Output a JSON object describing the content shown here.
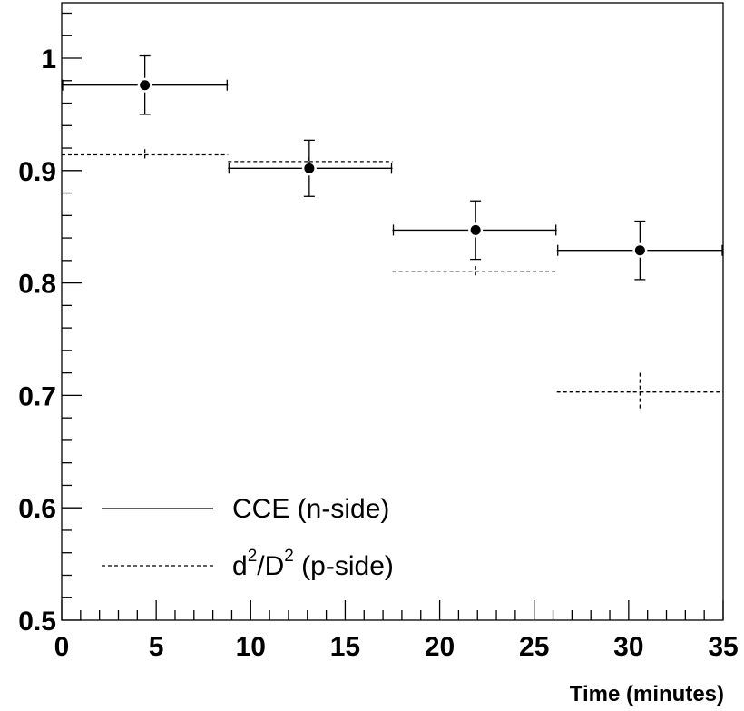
{
  "chart_data": {
    "type": "scatter",
    "title": "",
    "xlabel": "Time (minutes)",
    "ylabel": "",
    "xlim": [
      0,
      35
    ],
    "ylim": [
      0.5,
      1.05
    ],
    "x_ticks": [
      "0",
      "5",
      "10",
      "15",
      "20",
      "25",
      "30",
      "35"
    ],
    "y_ticks": [
      "0.5",
      "0.6",
      "0.7",
      "0.8",
      "0.9",
      "1"
    ],
    "grid": false,
    "legend_position": "bottom-left",
    "series": [
      {
        "name": "CCE (n-side)",
        "style": "solid",
        "markers": true,
        "points": [
          {
            "x": 4.4,
            "y": 0.976,
            "x_low": 0.0,
            "x_high": 8.8,
            "y_err": 0.026
          },
          {
            "x": 13.1,
            "y": 0.902,
            "x_low": 8.8,
            "x_high": 17.5,
            "y_err": 0.025
          },
          {
            "x": 21.9,
            "y": 0.847,
            "x_low": 17.5,
            "x_high": 26.2,
            "y_err": 0.026
          },
          {
            "x": 30.6,
            "y": 0.829,
            "x_low": 26.2,
            "x_high": 35.0,
            "y_err": 0.026
          }
        ]
      },
      {
        "name_main": "d",
        "name_sup1": "2",
        "name_mid": "/D",
        "name_sup2": "2",
        "name_tail": " (p-side)",
        "style": "dashed",
        "markers": false,
        "points": [
          {
            "x": 4.4,
            "y": 0.914,
            "x_low": 0.0,
            "x_high": 8.8,
            "y_err": 0.005
          },
          {
            "x": 13.1,
            "y": 0.908,
            "x_low": 8.8,
            "x_high": 17.5,
            "y_err": 0.004
          },
          {
            "x": 21.9,
            "y": 0.81,
            "x_low": 17.5,
            "x_high": 26.2,
            "y_err": 0.005
          },
          {
            "x": 30.6,
            "y": 0.703,
            "x_low": 26.2,
            "x_high": 35.0,
            "y_err": 0.017
          }
        ]
      }
    ]
  }
}
